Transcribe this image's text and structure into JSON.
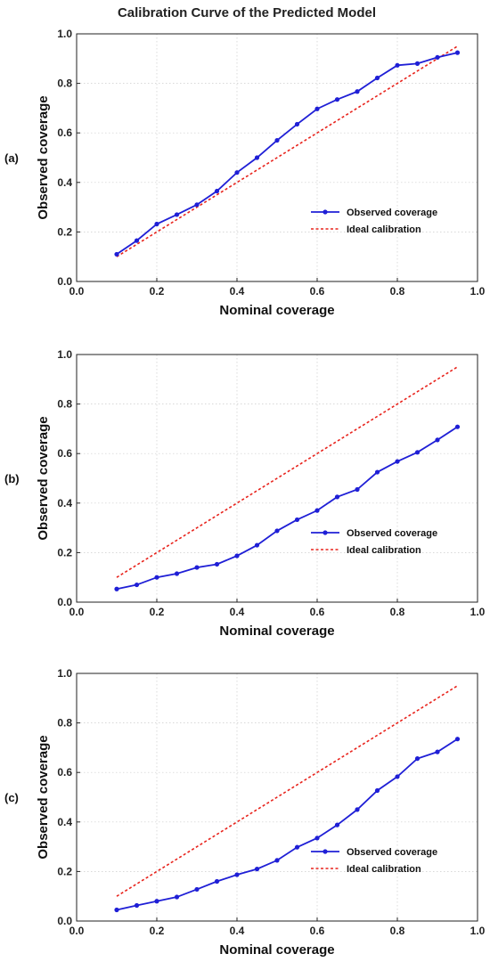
{
  "figure_title": "Calibration Curve of the Predicted Model",
  "colors": {
    "observed": "#1f1fd6",
    "ideal": "#e8231c",
    "grid": "#cccccc",
    "frame": "#222222"
  },
  "chart_data": [
    {
      "type": "line",
      "panel_label": "(a)",
      "xlabel": "Nominal coverage",
      "ylabel": "Observed coverage",
      "xlim": [
        0.0,
        1.0
      ],
      "ylim": [
        0.0,
        1.0
      ],
      "xticks": [
        "0.0",
        "0.2",
        "0.4",
        "0.6",
        "0.8",
        "1.0"
      ],
      "yticks": [
        "0.0",
        "0.2",
        "0.4",
        "0.6",
        "0.8",
        "1.0"
      ],
      "grid": true,
      "legend_position": "lower-right",
      "x": [
        0.1,
        0.15,
        0.2,
        0.25,
        0.3,
        0.35,
        0.4,
        0.45,
        0.5,
        0.55,
        0.6,
        0.65,
        0.7,
        0.75,
        0.8,
        0.85,
        0.9,
        0.95
      ],
      "series": [
        {
          "name": "Observed coverage",
          "style": "solid-markers",
          "values": [
            0.11,
            0.165,
            0.232,
            0.27,
            0.31,
            0.365,
            0.44,
            0.5,
            0.57,
            0.635,
            0.697,
            0.735,
            0.767,
            0.822,
            0.873,
            0.88,
            0.905,
            0.924
          ]
        },
        {
          "name": "Ideal calibration",
          "style": "dashed",
          "values": [
            0.1,
            0.15,
            0.2,
            0.25,
            0.3,
            0.35,
            0.4,
            0.45,
            0.5,
            0.55,
            0.6,
            0.65,
            0.7,
            0.75,
            0.8,
            0.85,
            0.9,
            0.95
          ]
        }
      ]
    },
    {
      "type": "line",
      "panel_label": "(b)",
      "xlabel": "Nominal coverage",
      "ylabel": "Observed coverage",
      "xlim": [
        0.0,
        1.0
      ],
      "ylim": [
        0.0,
        1.0
      ],
      "xticks": [
        "0.0",
        "0.2",
        "0.4",
        "0.6",
        "0.8",
        "1.0"
      ],
      "yticks": [
        "0.0",
        "0.2",
        "0.4",
        "0.6",
        "0.8",
        "1.0"
      ],
      "grid": true,
      "legend_position": "lower-right",
      "x": [
        0.1,
        0.15,
        0.2,
        0.25,
        0.3,
        0.35,
        0.4,
        0.45,
        0.5,
        0.55,
        0.6,
        0.65,
        0.7,
        0.75,
        0.8,
        0.85,
        0.9,
        0.95
      ],
      "series": [
        {
          "name": "Observed coverage",
          "style": "solid-markers",
          "values": [
            0.053,
            0.07,
            0.1,
            0.115,
            0.14,
            0.153,
            0.187,
            0.23,
            0.288,
            0.333,
            0.37,
            0.425,
            0.455,
            0.525,
            0.568,
            0.605,
            0.655,
            0.708
          ]
        },
        {
          "name": "Ideal calibration",
          "style": "dashed",
          "values": [
            0.1,
            0.15,
            0.2,
            0.25,
            0.3,
            0.35,
            0.4,
            0.45,
            0.5,
            0.55,
            0.6,
            0.65,
            0.7,
            0.75,
            0.8,
            0.85,
            0.9,
            0.95
          ]
        }
      ]
    },
    {
      "type": "line",
      "panel_label": "(c)",
      "xlabel": "Nominal coverage",
      "ylabel": "Observed coverage",
      "xlim": [
        0.0,
        1.0
      ],
      "ylim": [
        0.0,
        1.0
      ],
      "xticks": [
        "0.0",
        "0.2",
        "0.4",
        "0.6",
        "0.8",
        "1.0"
      ],
      "yticks": [
        "0.0",
        "0.2",
        "0.4",
        "0.6",
        "0.8",
        "1.0"
      ],
      "grid": true,
      "legend_position": "lower-right",
      "x": [
        0.1,
        0.15,
        0.2,
        0.25,
        0.3,
        0.35,
        0.4,
        0.45,
        0.5,
        0.55,
        0.6,
        0.65,
        0.7,
        0.75,
        0.8,
        0.85,
        0.9,
        0.95
      ],
      "series": [
        {
          "name": "Observed coverage",
          "style": "solid-markers",
          "values": [
            0.045,
            0.063,
            0.08,
            0.097,
            0.128,
            0.16,
            0.187,
            0.21,
            0.245,
            0.298,
            0.335,
            0.388,
            0.45,
            0.527,
            0.583,
            0.656,
            0.683,
            0.735
          ]
        },
        {
          "name": "Ideal calibration",
          "style": "dashed",
          "values": [
            0.1,
            0.15,
            0.2,
            0.25,
            0.3,
            0.35,
            0.4,
            0.45,
            0.5,
            0.55,
            0.6,
            0.65,
            0.7,
            0.75,
            0.8,
            0.85,
            0.9,
            0.95
          ]
        }
      ]
    }
  ]
}
